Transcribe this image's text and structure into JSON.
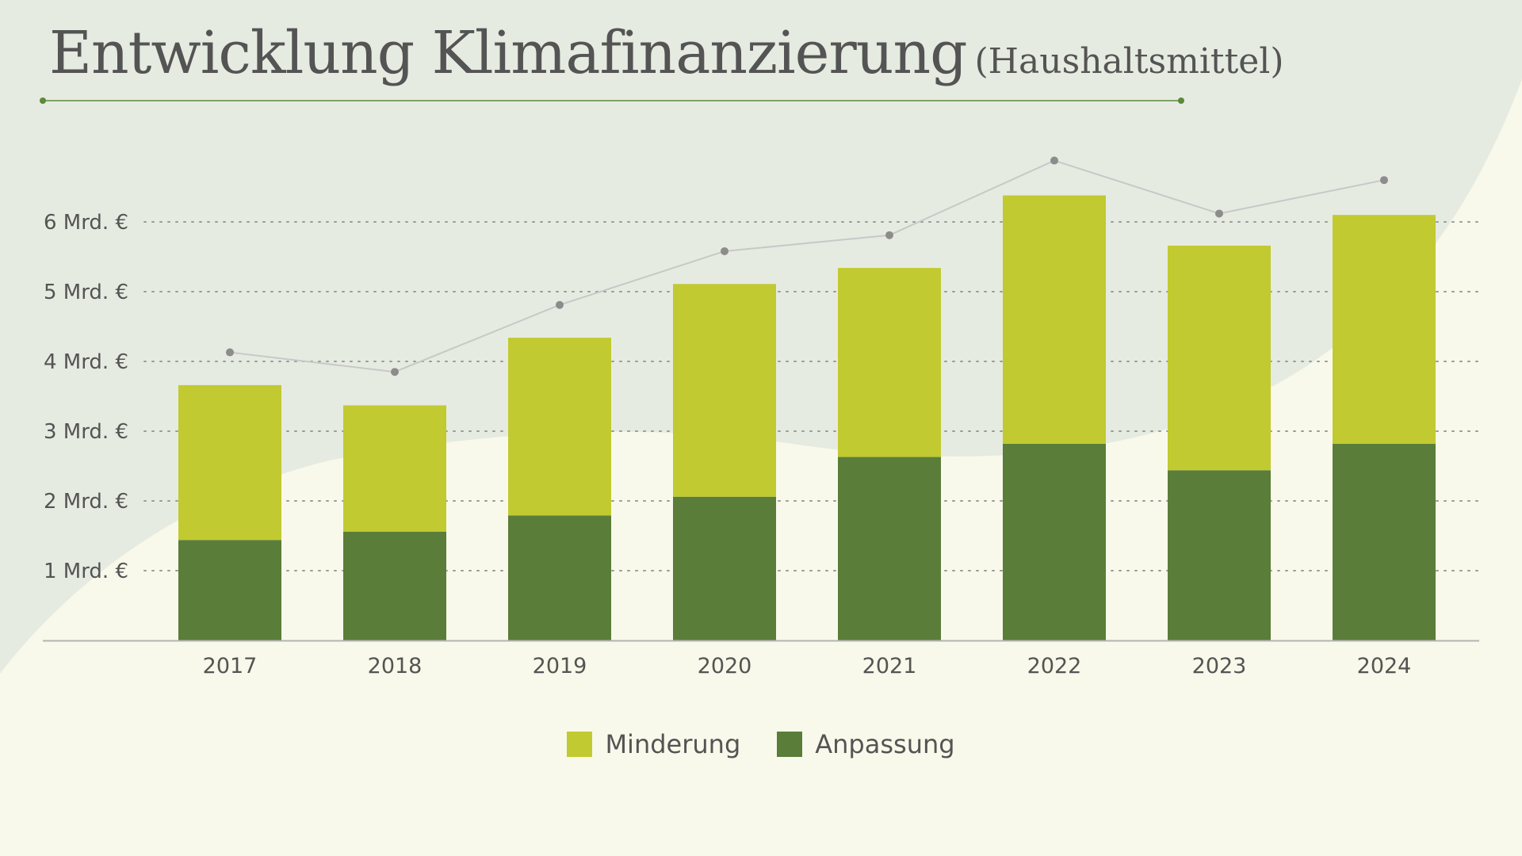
{
  "title": {
    "main": "Entwicklung Klimafinanzierung",
    "sub": "(Haushaltsmittel)"
  },
  "colors": {
    "minderung": "#c1ca30",
    "anpassung": "#5a7d39",
    "total_line": "#c8c8c8",
    "total_marker": "#8c8c8c",
    "background": "#f8f9ea",
    "background_shape": "#e6ebe1",
    "title_rule": "#5a8a3a"
  },
  "legend": {
    "minderung": "Minderung",
    "anpassung": "Anpassung"
  },
  "chart_data": {
    "type": "bar",
    "stacked": true,
    "categories": [
      "2017",
      "2018",
      "2019",
      "2020",
      "2021",
      "2022",
      "2023",
      "2024"
    ],
    "series": [
      {
        "name": "Anpassung",
        "values": [
          1.44,
          1.56,
          1.79,
          2.06,
          2.63,
          2.82,
          2.44,
          2.82
        ]
      },
      {
        "name": "Minderung",
        "values": [
          2.22,
          1.81,
          2.55,
          3.05,
          2.71,
          3.56,
          3.22,
          3.28
        ]
      }
    ],
    "line_series": {
      "values": [
        4.13,
        3.85,
        4.81,
        5.58,
        5.81,
        6.88,
        6.12,
        6.6
      ]
    },
    "ylim": [
      0,
      7
    ],
    "yticks": [
      {
        "value": 1,
        "label": "1 Mrd. €"
      },
      {
        "value": 2,
        "label": "2 Mrd. €"
      },
      {
        "value": 3,
        "label": "3 Mrd. €"
      },
      {
        "value": 4,
        "label": "4 Mrd. €"
      },
      {
        "value": 5,
        "label": "5 Mrd. €"
      },
      {
        "value": 6,
        "label": "6 Mrd. €"
      }
    ],
    "grid": "dotted horizontal",
    "legend_position": "bottom"
  }
}
